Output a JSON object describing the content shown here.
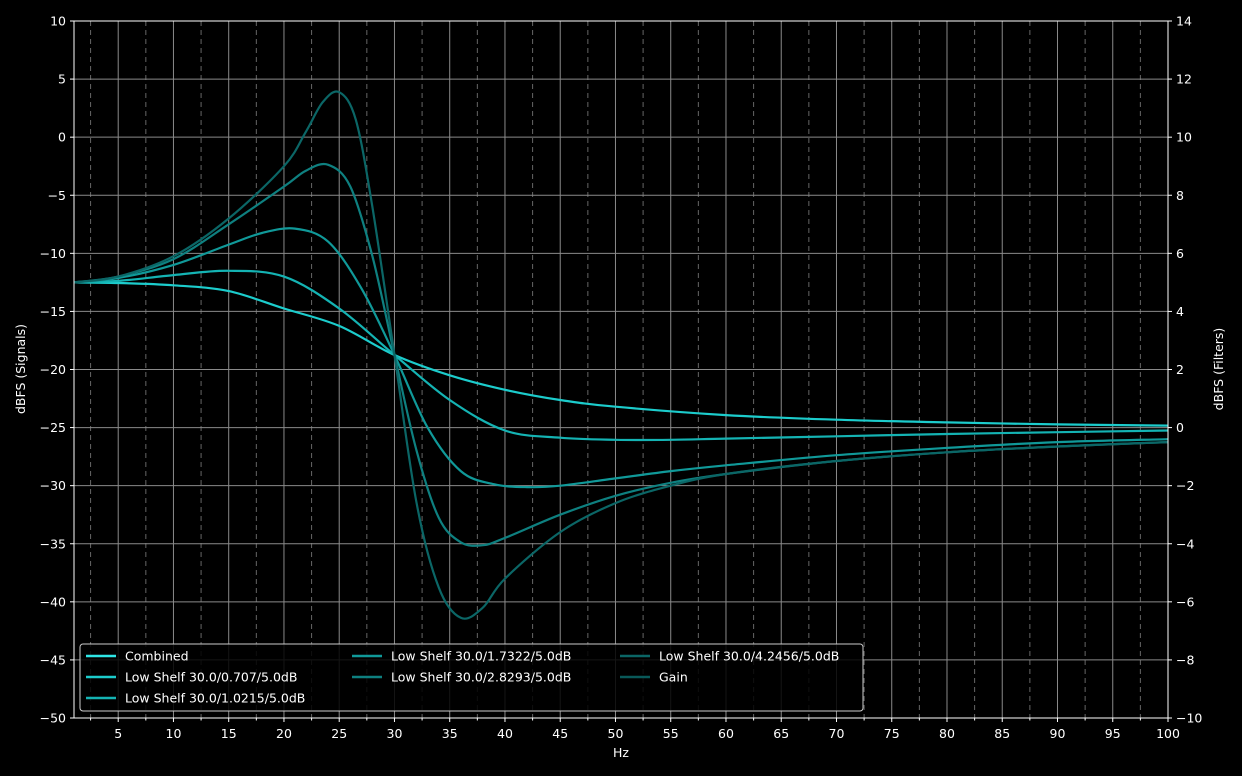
{
  "chart_data": {
    "type": "line",
    "title": "",
    "xlabel": "Hz",
    "ylabel_left": "dBFS (Signals)",
    "ylabel_right": "dBFS (Filters)",
    "xlim": [
      1,
      100
    ],
    "ylim_left": [
      -50,
      10
    ],
    "ylim_right": [
      -10,
      14
    ],
    "x_ticks": [
      5,
      10,
      15,
      20,
      25,
      30,
      35,
      40,
      45,
      50,
      55,
      60,
      65,
      70,
      75,
      80,
      85,
      90,
      95,
      100
    ],
    "x_tick_labels": [
      "5",
      "10",
      "15",
      "20",
      "25",
      "30",
      "35",
      "40",
      "45",
      "50",
      "55",
      "60",
      "65",
      "70",
      "75",
      "80",
      "85",
      "90",
      "95",
      "100"
    ],
    "y_left_ticks": [
      10,
      5,
      0,
      -5,
      -10,
      -15,
      -20,
      -25,
      -30,
      -35,
      -40,
      -45,
      -50
    ],
    "y_left_tick_labels": [
      "10",
      "5",
      "0",
      "−5",
      "−10",
      "−15",
      "−20",
      "−25",
      "−30",
      "−35",
      "−40",
      "−45",
      "−50"
    ],
    "y_right_ticks": [
      14,
      12,
      10,
      8,
      6,
      4,
      2,
      0,
      -2,
      -4,
      -6,
      -8,
      -10
    ],
    "y_right_tick_labels": [
      "14",
      "12",
      "10",
      "8",
      "6",
      "4",
      "2",
      "0",
      "−2",
      "−4",
      "−6",
      "−8",
      "−10"
    ],
    "grid": true,
    "legend": {
      "position": "lower-left",
      "columns": 3,
      "entries": [
        {
          "label": "Combined",
          "color": "#2ee6e6"
        },
        {
          "label": "Low Shelf 30.0/0.707/5.0dB",
          "color": "#1ccccc"
        },
        {
          "label": "Low Shelf 30.0/1.0215/5.0dB",
          "color": "#14b3b3"
        },
        {
          "label": "Low Shelf 30.0/1.7322/5.0dB",
          "color": "#109999"
        },
        {
          "label": "Low Shelf 30.0/2.8293/5.0dB",
          "color": "#0e8080"
        },
        {
          "label": "Low Shelf 30.0/4.2456/5.0dB",
          "color": "#0b6666"
        },
        {
          "label": "Gain",
          "color": "#095959"
        }
      ]
    },
    "series": [
      {
        "name": "Low Shelf 30.0/0.707/5.0dB",
        "axis": "right",
        "color": "#1ccccc",
        "x": [
          1,
          5,
          10,
          15,
          20,
          25,
          30,
          35,
          40,
          45,
          50,
          60,
          70,
          80,
          90,
          100
        ],
        "y": [
          5.0,
          4.98,
          4.9,
          4.7,
          4.1,
          3.5,
          2.5,
          1.8,
          1.3,
          0.95,
          0.72,
          0.43,
          0.27,
          0.18,
          0.11,
          0.07
        ]
      },
      {
        "name": "Low Shelf 30.0/1.0215/5.0dB",
        "axis": "right",
        "color": "#14b3b3",
        "x": [
          1,
          5,
          10,
          15,
          20,
          25,
          30,
          35,
          40,
          45,
          50,
          55,
          60,
          70,
          80,
          90,
          100
        ],
        "y": [
          5.0,
          5.05,
          5.25,
          5.4,
          5.2,
          4.1,
          2.5,
          0.95,
          -0.1,
          -0.35,
          -0.42,
          -0.42,
          -0.38,
          -0.3,
          -0.22,
          -0.16,
          -0.1
        ]
      },
      {
        "name": "Low Shelf 30.0/1.7322/5.0dB",
        "axis": "right",
        "color": "#109999",
        "x": [
          1,
          5,
          10,
          15,
          18,
          21,
          24,
          27,
          30,
          33,
          36,
          39,
          42,
          45,
          50,
          55,
          60,
          70,
          80,
          90,
          100
        ],
        "y": [
          5.0,
          5.15,
          5.6,
          6.3,
          6.7,
          6.85,
          6.4,
          4.8,
          2.5,
          0.0,
          -1.5,
          -1.95,
          -2.05,
          -2.0,
          -1.75,
          -1.5,
          -1.3,
          -0.95,
          -0.7,
          -0.5,
          -0.4
        ]
      },
      {
        "name": "Low Shelf 30.0/2.8293/5.0dB",
        "axis": "right",
        "color": "#0e8080",
        "x": [
          1,
          5,
          10,
          15,
          20,
          22,
          24,
          26,
          28,
          30,
          32,
          34,
          36,
          38,
          40,
          45,
          50,
          55,
          60,
          70,
          80,
          90,
          100
        ],
        "y": [
          5.0,
          5.2,
          5.8,
          7.0,
          8.3,
          8.85,
          9.05,
          8.3,
          5.9,
          2.5,
          -0.8,
          -3.1,
          -3.95,
          -4.05,
          -3.8,
          -3.0,
          -2.35,
          -1.9,
          -1.6,
          -1.15,
          -0.85,
          -0.65,
          -0.5
        ]
      },
      {
        "name": "Low Shelf 30.0/4.2456/5.0dB",
        "axis": "right",
        "color": "#0b6666",
        "x": [
          1,
          5,
          10,
          15,
          20,
          22,
          23.5,
          25,
          26.5,
          28,
          30,
          32,
          34,
          36,
          38,
          40,
          45,
          50,
          55,
          60,
          70,
          80,
          90,
          100
        ],
        "y": [
          5.0,
          5.2,
          5.9,
          7.2,
          9.0,
          10.2,
          11.2,
          11.55,
          10.6,
          7.6,
          2.5,
          -2.6,
          -5.5,
          -6.55,
          -6.2,
          -5.2,
          -3.6,
          -2.6,
          -2.0,
          -1.6,
          -1.15,
          -0.85,
          -0.65,
          -0.5
        ]
      }
    ]
  }
}
